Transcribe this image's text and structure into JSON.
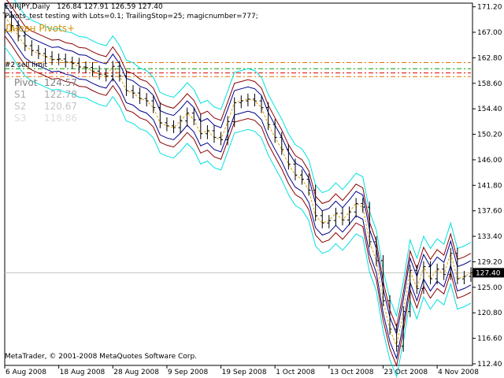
{
  "header": {
    "symbol_tf": "EURJPY,Daily",
    "ohlc": "126.84 127.91 126.59 127.40",
    "expert_line": "Pivots_test testing with Lots=0.1; TrailingStop=25; magicnumber=777;",
    "indicator_name": "Дневн Pivots+",
    "order_label": "#2 sell limit"
  },
  "pivot_panel": [
    {
      "label": "Pivot",
      "value": "124.57",
      "color": "#808080"
    },
    {
      "label": "S1",
      "value": "122.78",
      "color": "#a8a8a8"
    },
    {
      "label": "S2",
      "value": "120.67",
      "color": "#c4c4c4"
    },
    {
      "label": "S3",
      "value": "118.86",
      "color": "#dedede"
    }
  ],
  "footer": "MetaTrader, © 2001-2008 MetaQuotes Software Corp.",
  "current_price": "127.40",
  "colors": {
    "background": "#ffffff",
    "candle": "#000000",
    "mid_line": "#e0a000",
    "band_inner": "#00008b",
    "band_middle": "#8b0000",
    "band_outer": "#00e0e0",
    "level_orange": "#e07000",
    "level_green": "#00a000",
    "level_red": "#e00000",
    "price_label_bg": "#000000",
    "price_label_fg": "#ffffff"
  },
  "chart_data": {
    "type": "candlestick",
    "ylim": [
      112.4,
      171.8
    ],
    "y_ticks": [
      "171.20",
      "167.00",
      "162.80",
      "158.60",
      "154.40",
      "150.20",
      "146.00",
      "141.80",
      "137.60",
      "133.40",
      "129.20",
      "125.00",
      "120.80",
      "116.60",
      "112.40"
    ],
    "x_tick_labels": [
      "6 Aug 2008",
      "18 Aug 2008",
      "28 Aug 2008",
      "9 Sep 2008",
      "19 Sep 2008",
      "1 Oct 2008",
      "13 Oct 2008",
      "23 Oct 2008",
      "4 Nov 2008"
    ],
    "x_tick_index": [
      0,
      8,
      16,
      24,
      32,
      40,
      48,
      56,
      64
    ],
    "closes": [
      169.6,
      168.1,
      166.4,
      164.8,
      164.0,
      163.5,
      163.0,
      162.5,
      162.6,
      162.1,
      161.9,
      161.3,
      161.2,
      160.6,
      160.1,
      159.8,
      161.4,
      159.8,
      157.4,
      157.0,
      156.1,
      155.7,
      154.6,
      152.1,
      151.6,
      151.3,
      152.4,
      153.7,
      152.6,
      150.3,
      150.8,
      149.7,
      149.3,
      152.3,
      155.4,
      155.7,
      156.0,
      155.7,
      154.6,
      151.8,
      149.7,
      147.7,
      145.3,
      143.5,
      142.8,
      141.0,
      136.8,
      135.6,
      136.0,
      137.2,
      136.1,
      137.4,
      138.8,
      138.2,
      132.5,
      129.4,
      122.8,
      118.1,
      115.3,
      121.0,
      127.8,
      124.8,
      128.4,
      126.4,
      128.0,
      127.1,
      130.6,
      126.4,
      126.8,
      127.4
    ],
    "band_offsets": [
      2.0,
      3.2,
      5.0
    ],
    "levels": [
      {
        "price": 162.0,
        "color": "#e07000"
      },
      {
        "price": 161.0,
        "color": "#00a000"
      },
      {
        "price": 160.3,
        "color": "#e00000"
      },
      {
        "price": 159.7,
        "color": "#e07000"
      }
    ]
  }
}
